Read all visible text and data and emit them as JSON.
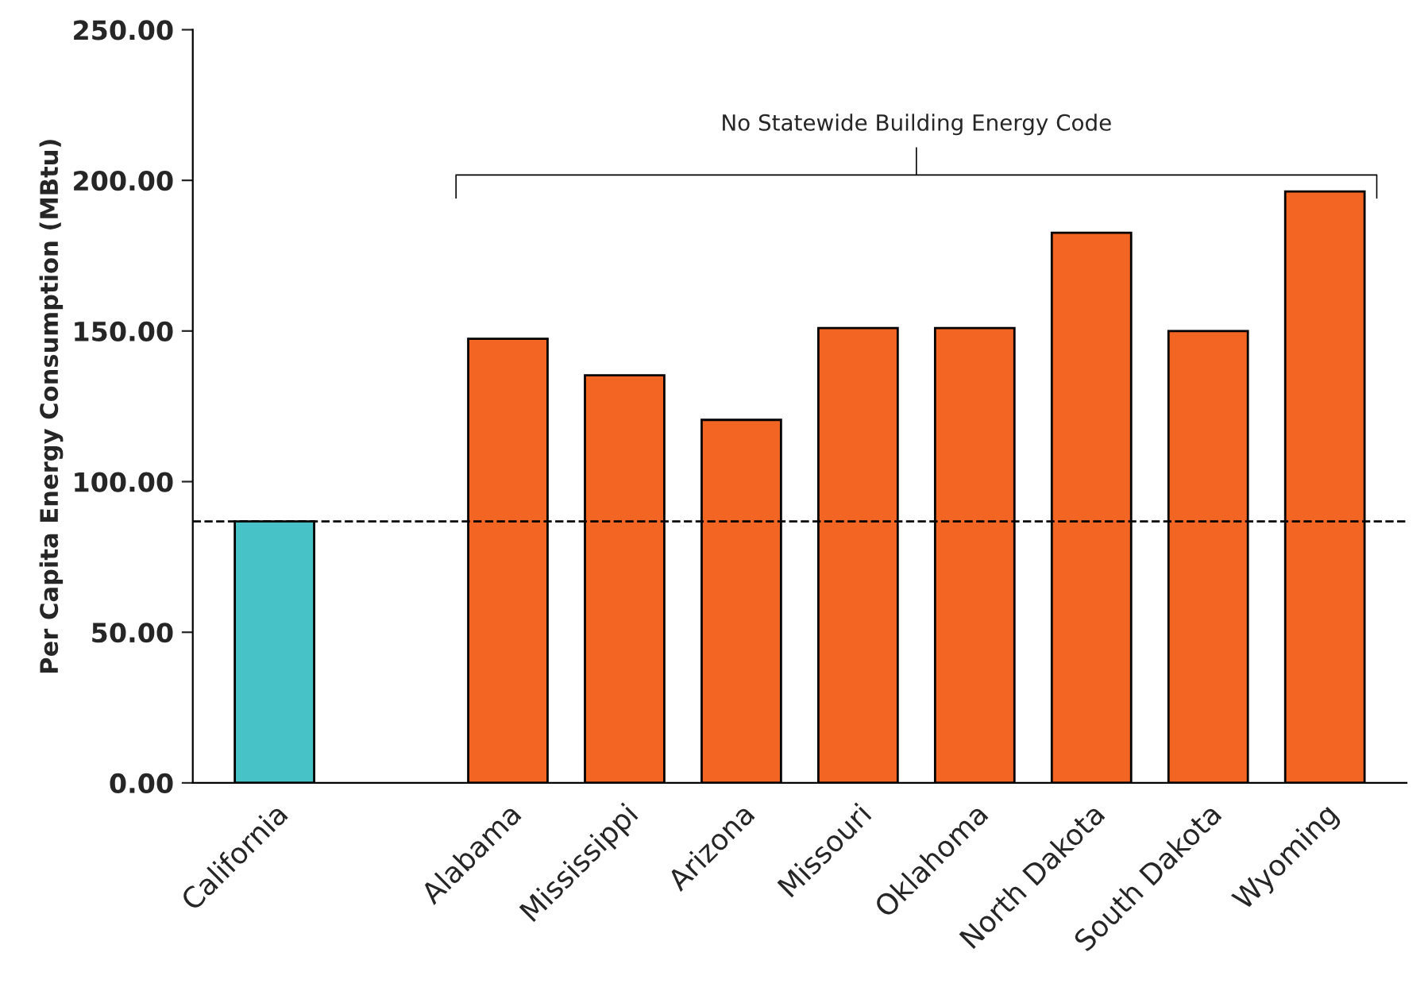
{
  "chart_data": {
    "type": "bar",
    "ylabel": "Per Capita Energy Consumption (MBtu)",
    "categories": [
      "California",
      null,
      "Alabama",
      "Mississippi",
      "Arizona",
      "Missouri",
      "Oklahoma",
      "North Dakota",
      "South Dakota",
      "Wyoming"
    ],
    "values": [
      86.8,
      null,
      147.4,
      135.3,
      120.5,
      151.0,
      151.0,
      182.6,
      150.0,
      196.3
    ],
    "colors": [
      "#47c3c8",
      "#f26522",
      "#f26522",
      "#f26522",
      "#f26522",
      "#f26522",
      "#f26522",
      "#f26522",
      "#f26522",
      "#f26522"
    ],
    "ylim": [
      0,
      250
    ],
    "yticks": [
      {
        "value": 0,
        "label": "0.00"
      },
      {
        "value": 50,
        "label": "50.00"
      },
      {
        "value": 100,
        "label": "100.00"
      },
      {
        "value": 150,
        "label": "150.00"
      },
      {
        "value": 200,
        "label": "200.00"
      },
      {
        "value": 250,
        "label": "250.00"
      }
    ],
    "ref_lines": [
      {
        "axis": "y",
        "value": 86.8,
        "label": null,
        "color": "#000000",
        "line_style": "dashed"
      }
    ],
    "annotations": [
      "No Statewide Building Energy Code"
    ],
    "grid": false,
    "legend": false
  }
}
